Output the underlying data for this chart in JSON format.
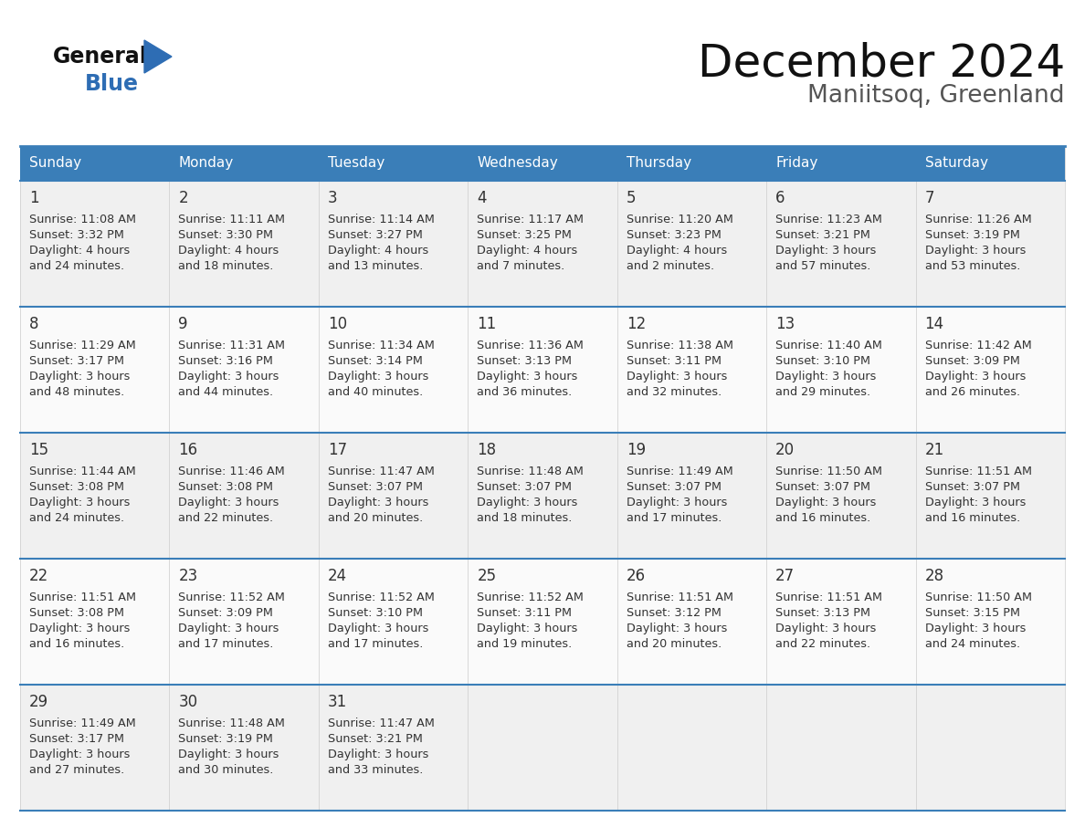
{
  "title": "December 2024",
  "subtitle": "Maniitsoq, Greenland",
  "header_color": "#3a7eb8",
  "header_text_color": "#ffffff",
  "cell_bg_light": "#f0f0f0",
  "cell_bg_white": "#fafafa",
  "border_color": "#3a7eb8",
  "text_color": "#333333",
  "days_of_week": [
    "Sunday",
    "Monday",
    "Tuesday",
    "Wednesday",
    "Thursday",
    "Friday",
    "Saturday"
  ],
  "weeks": [
    [
      {
        "day": "1",
        "sunrise": "11:08 AM",
        "sunset": "3:32 PM",
        "daylight1": "4 hours",
        "daylight2": "and 24 minutes."
      },
      {
        "day": "2",
        "sunrise": "11:11 AM",
        "sunset": "3:30 PM",
        "daylight1": "4 hours",
        "daylight2": "and 18 minutes."
      },
      {
        "day": "3",
        "sunrise": "11:14 AM",
        "sunset": "3:27 PM",
        "daylight1": "4 hours",
        "daylight2": "and 13 minutes."
      },
      {
        "day": "4",
        "sunrise": "11:17 AM",
        "sunset": "3:25 PM",
        "daylight1": "4 hours",
        "daylight2": "and 7 minutes."
      },
      {
        "day": "5",
        "sunrise": "11:20 AM",
        "sunset": "3:23 PM",
        "daylight1": "4 hours",
        "daylight2": "and 2 minutes."
      },
      {
        "day": "6",
        "sunrise": "11:23 AM",
        "sunset": "3:21 PM",
        "daylight1": "3 hours",
        "daylight2": "and 57 minutes."
      },
      {
        "day": "7",
        "sunrise": "11:26 AM",
        "sunset": "3:19 PM",
        "daylight1": "3 hours",
        "daylight2": "and 53 minutes."
      }
    ],
    [
      {
        "day": "8",
        "sunrise": "11:29 AM",
        "sunset": "3:17 PM",
        "daylight1": "3 hours",
        "daylight2": "and 48 minutes."
      },
      {
        "day": "9",
        "sunrise": "11:31 AM",
        "sunset": "3:16 PM",
        "daylight1": "3 hours",
        "daylight2": "and 44 minutes."
      },
      {
        "day": "10",
        "sunrise": "11:34 AM",
        "sunset": "3:14 PM",
        "daylight1": "3 hours",
        "daylight2": "and 40 minutes."
      },
      {
        "day": "11",
        "sunrise": "11:36 AM",
        "sunset": "3:13 PM",
        "daylight1": "3 hours",
        "daylight2": "and 36 minutes."
      },
      {
        "day": "12",
        "sunrise": "11:38 AM",
        "sunset": "3:11 PM",
        "daylight1": "3 hours",
        "daylight2": "and 32 minutes."
      },
      {
        "day": "13",
        "sunrise": "11:40 AM",
        "sunset": "3:10 PM",
        "daylight1": "3 hours",
        "daylight2": "and 29 minutes."
      },
      {
        "day": "14",
        "sunrise": "11:42 AM",
        "sunset": "3:09 PM",
        "daylight1": "3 hours",
        "daylight2": "and 26 minutes."
      }
    ],
    [
      {
        "day": "15",
        "sunrise": "11:44 AM",
        "sunset": "3:08 PM",
        "daylight1": "3 hours",
        "daylight2": "and 24 minutes."
      },
      {
        "day": "16",
        "sunrise": "11:46 AM",
        "sunset": "3:08 PM",
        "daylight1": "3 hours",
        "daylight2": "and 22 minutes."
      },
      {
        "day": "17",
        "sunrise": "11:47 AM",
        "sunset": "3:07 PM",
        "daylight1": "3 hours",
        "daylight2": "and 20 minutes."
      },
      {
        "day": "18",
        "sunrise": "11:48 AM",
        "sunset": "3:07 PM",
        "daylight1": "3 hours",
        "daylight2": "and 18 minutes."
      },
      {
        "day": "19",
        "sunrise": "11:49 AM",
        "sunset": "3:07 PM",
        "daylight1": "3 hours",
        "daylight2": "and 17 minutes."
      },
      {
        "day": "20",
        "sunrise": "11:50 AM",
        "sunset": "3:07 PM",
        "daylight1": "3 hours",
        "daylight2": "and 16 minutes."
      },
      {
        "day": "21",
        "sunrise": "11:51 AM",
        "sunset": "3:07 PM",
        "daylight1": "3 hours",
        "daylight2": "and 16 minutes."
      }
    ],
    [
      {
        "day": "22",
        "sunrise": "11:51 AM",
        "sunset": "3:08 PM",
        "daylight1": "3 hours",
        "daylight2": "and 16 minutes."
      },
      {
        "day": "23",
        "sunrise": "11:52 AM",
        "sunset": "3:09 PM",
        "daylight1": "3 hours",
        "daylight2": "and 17 minutes."
      },
      {
        "day": "24",
        "sunrise": "11:52 AM",
        "sunset": "3:10 PM",
        "daylight1": "3 hours",
        "daylight2": "and 17 minutes."
      },
      {
        "day": "25",
        "sunrise": "11:52 AM",
        "sunset": "3:11 PM",
        "daylight1": "3 hours",
        "daylight2": "and 19 minutes."
      },
      {
        "day": "26",
        "sunrise": "11:51 AM",
        "sunset": "3:12 PM",
        "daylight1": "3 hours",
        "daylight2": "and 20 minutes."
      },
      {
        "day": "27",
        "sunrise": "11:51 AM",
        "sunset": "3:13 PM",
        "daylight1": "3 hours",
        "daylight2": "and 22 minutes."
      },
      {
        "day": "28",
        "sunrise": "11:50 AM",
        "sunset": "3:15 PM",
        "daylight1": "3 hours",
        "daylight2": "and 24 minutes."
      }
    ],
    [
      {
        "day": "29",
        "sunrise": "11:49 AM",
        "sunset": "3:17 PM",
        "daylight1": "3 hours",
        "daylight2": "and 27 minutes."
      },
      {
        "day": "30",
        "sunrise": "11:48 AM",
        "sunset": "3:19 PM",
        "daylight1": "3 hours",
        "daylight2": "and 30 minutes."
      },
      {
        "day": "31",
        "sunrise": "11:47 AM",
        "sunset": "3:21 PM",
        "daylight1": "3 hours",
        "daylight2": "and 33 minutes."
      },
      null,
      null,
      null,
      null
    ]
  ],
  "logo_text1": "General",
  "logo_text2": "Blue",
  "logo_color1": "#111111",
  "logo_color2": "#2e6db4",
  "logo_triangle_color": "#2e6db4",
  "title_color": "#111111",
  "subtitle_color": "#555555"
}
